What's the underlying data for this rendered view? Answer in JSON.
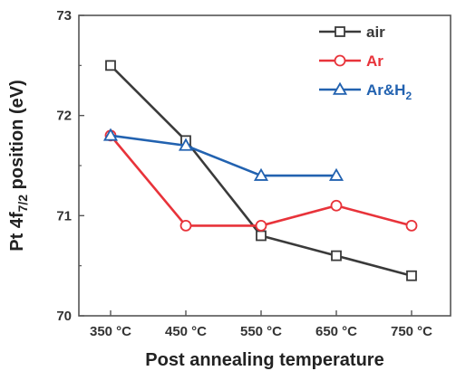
{
  "chart_data": {
    "type": "line",
    "title": "",
    "xlabel": "Post annealing temperature",
    "ylabel_main": "Pt 4f",
    "ylabel_subscript": "7/2",
    "ylabel_rest": " position (eV)",
    "categories": [
      "350 °C",
      "450 °C",
      "550 °C",
      "650 °C",
      "750 °C"
    ],
    "ylim": [
      70,
      73
    ],
    "yticks": [
      "70",
      "71",
      "72",
      "73"
    ],
    "grid": false,
    "legend_position": "top-right",
    "series": [
      {
        "name": "air",
        "name_subscript": "",
        "color": "#3a3a3a",
        "marker": "square",
        "values": [
          72.5,
          71.75,
          70.8,
          70.6,
          70.4
        ]
      },
      {
        "name": "Ar",
        "name_subscript": "",
        "color": "#e8333a",
        "marker": "circle",
        "values": [
          71.8,
          70.9,
          70.9,
          71.1,
          70.9
        ]
      },
      {
        "name": "Ar&H",
        "name_subscript": "2",
        "color": "#2262b0",
        "marker": "triangle",
        "values": [
          71.8,
          71.7,
          71.4,
          71.4,
          null
        ]
      }
    ]
  }
}
